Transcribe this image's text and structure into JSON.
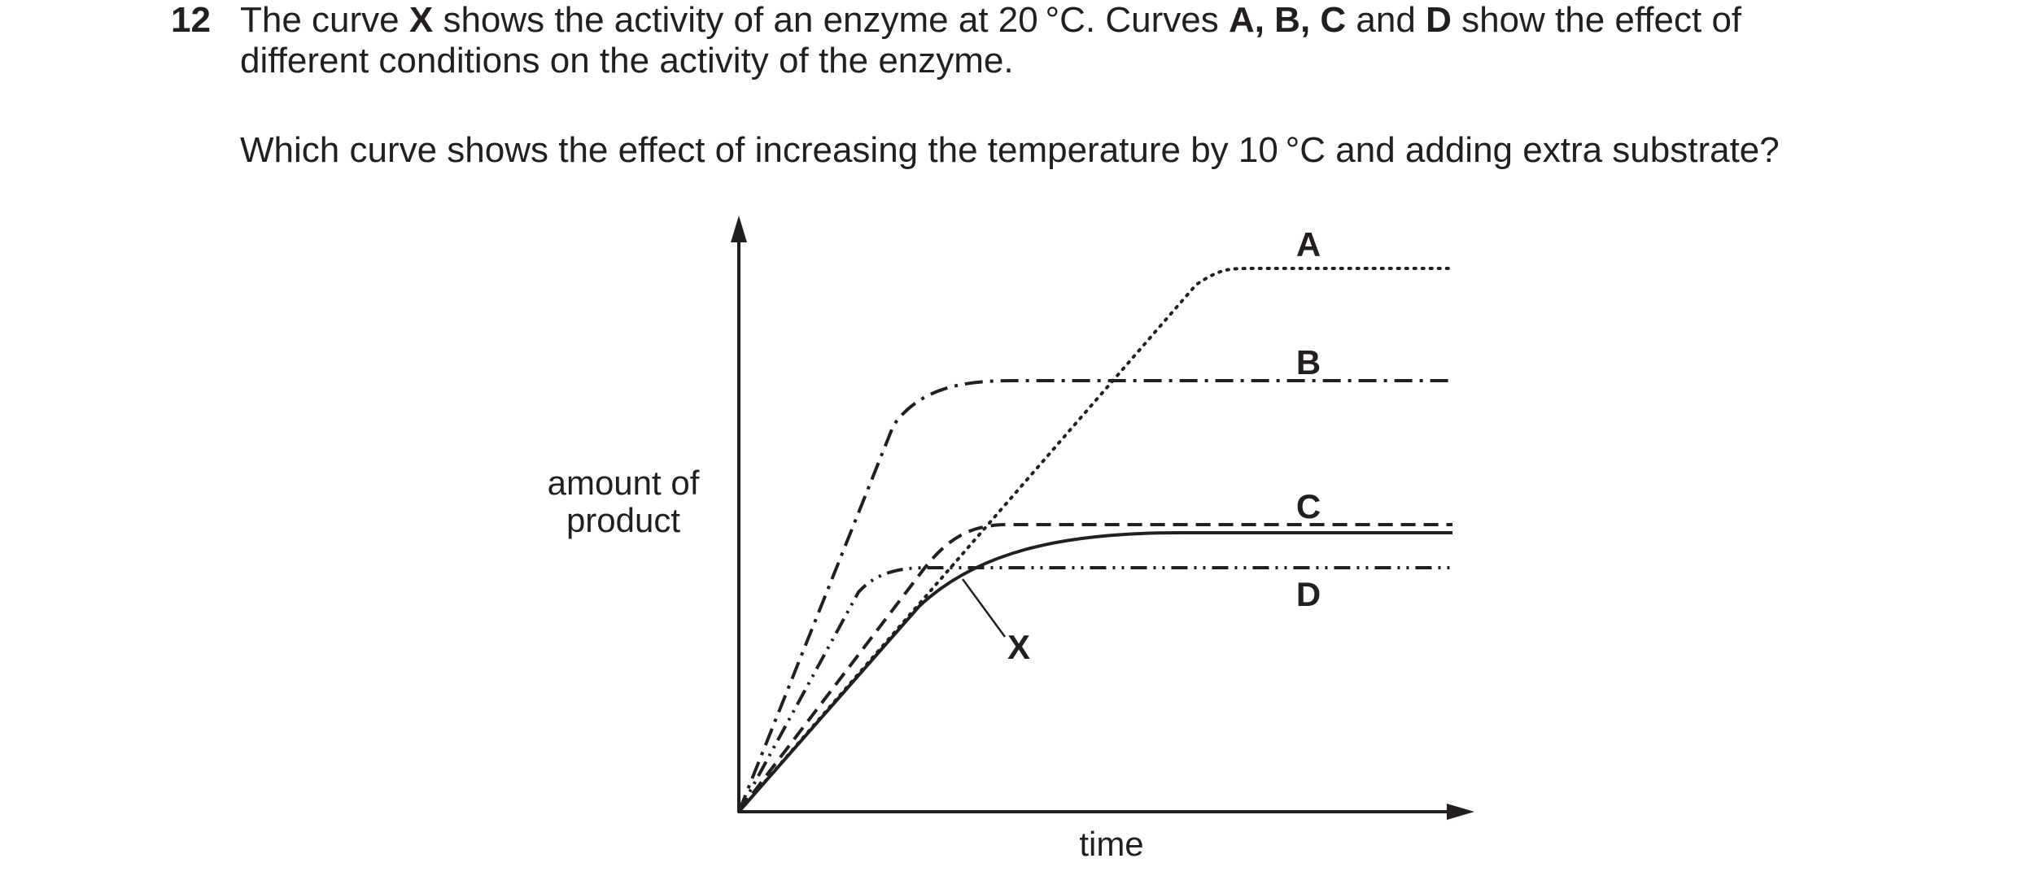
{
  "question": {
    "number": "12",
    "intro_segments": [
      {
        "text": "The curve ",
        "bold": false
      },
      {
        "text": "X",
        "bold": true
      },
      {
        "text": " shows the activity of an enzyme at 20 °C. Curves ",
        "bold": false
      },
      {
        "text": "A, B, C",
        "bold": true
      },
      {
        "text": " and ",
        "bold": false
      },
      {
        "text": "D",
        "bold": true
      },
      {
        "text": " show the effect of",
        "bold": false
      }
    ],
    "intro_line2": "different conditions on the activity of the enzyme.",
    "prompt": "Which curve shows the effect of increasing the temperature by 10 °C and adding extra substrate?"
  },
  "chart_data": {
    "type": "line",
    "ylabel_lines": [
      "amount of",
      "product"
    ],
    "xlabel": "time",
    "series": [
      {
        "name": "A",
        "style": "dotted"
      },
      {
        "name": "B",
        "style": "dash-dot"
      },
      {
        "name": "C",
        "style": "dashed"
      },
      {
        "name": "D",
        "style": "dash-dot-dot"
      },
      {
        "name": "X",
        "style": "solid"
      }
    ]
  }
}
